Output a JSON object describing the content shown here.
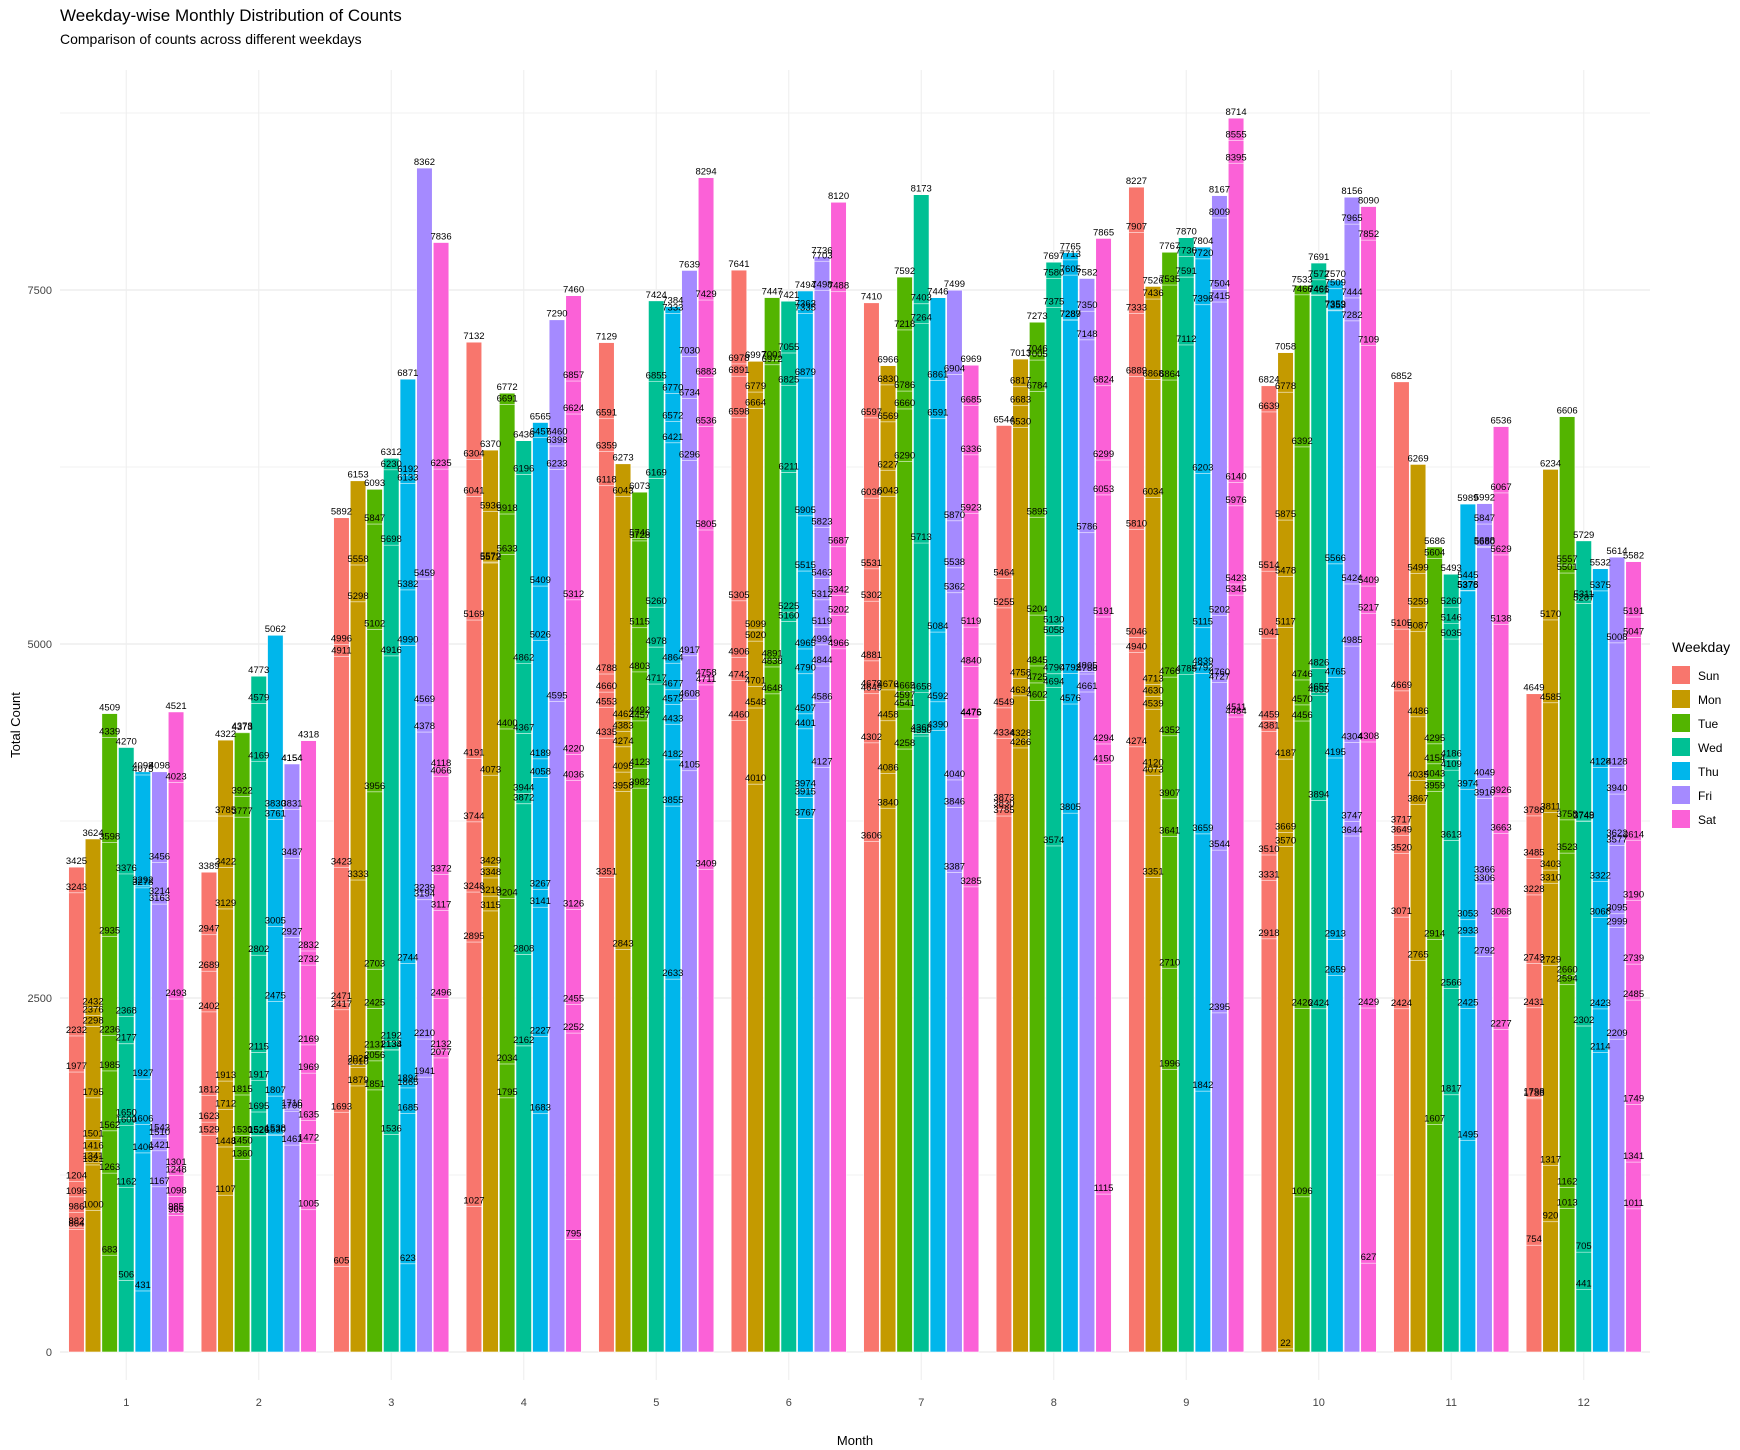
{
  "chart_data": {
    "type": "bar",
    "title": "Weekday-wise Monthly Distribution of Counts",
    "subtitle": "Comparison of counts across different weekdays",
    "xlabel": "Month",
    "ylabel": "Total Count",
    "ylim": [
      0,
      8800
    ],
    "y_ticks": [
      0,
      2500,
      5000,
      7500
    ],
    "categories": [
      "1",
      "2",
      "3",
      "4",
      "5",
      "6",
      "7",
      "8",
      "9",
      "10",
      "11",
      "12"
    ],
    "grid": true,
    "legend": {
      "title": "Weekday",
      "placement": "right"
    },
    "series": [
      {
        "name": "Sun",
        "color": "#F8766D",
        "values": [
          3425,
          3389,
          5892,
          7132,
          7129,
          7641,
          7410,
          6544,
          8227,
          6824,
          6852,
          4649
        ],
        "labels": [
          [
            3425,
            3243,
            2232,
            1977,
            1204,
            1096,
            986,
            882,
            864
          ],
          [
            3389,
            2947,
            2689,
            2402,
            1812,
            1623,
            1529
          ],
          [
            5892,
            4996,
            4911,
            3423,
            2471,
            2417,
            1693,
            605
          ],
          [
            7132,
            6304,
            6041,
            5169,
            4191,
            3744,
            3248,
            2895,
            1027
          ],
          [
            7129,
            6591,
            6359,
            6118,
            4788,
            4660,
            4553,
            4335,
            3351
          ],
          [
            7641,
            6978,
            6891,
            6598,
            5305,
            4906,
            4742,
            4460
          ],
          [
            7410,
            6597,
            6030,
            5531,
            5302,
            4881,
            4679,
            4649,
            4302,
            3606
          ],
          [
            6544,
            5464,
            5255,
            4549,
            4334,
            3873,
            3830,
            3785
          ],
          [
            8227,
            7907,
            7333,
            6889,
            5810,
            5046,
            4940,
            4274
          ],
          [
            6824,
            6639,
            5514,
            5041,
            4459,
            4381,
            3510,
            3331,
            2918
          ],
          [
            6852,
            5105,
            4669,
            3717,
            3649,
            3520,
            3071,
            2424
          ],
          [
            4649,
            3786,
            3485,
            3228,
            2743,
            2431,
            1798,
            1788,
            754
          ]
        ]
      },
      {
        "name": "Mon",
        "color": "#C49A00",
        "values": [
          3624,
          4322,
          6153,
          6370,
          6273,
          6997,
          6966,
          7013,
          7526,
          7058,
          6269,
          6234
        ],
        "labels": [
          [
            3624,
            2432,
            2376,
            2298,
            1795,
            1501,
            1416,
            1341,
            1321,
            1000
          ],
          [
            4322,
            3785,
            3422,
            3129,
            1913,
            1712,
            1448,
            1107
          ],
          [
            6153,
            5558,
            5298,
            3333,
            2029,
            2010,
            1879
          ],
          [
            6370,
            5936,
            5579,
            5572,
            4073,
            3429,
            3348,
            3219,
            3115
          ],
          [
            6273,
            6043,
            4462,
            4383,
            4274,
            4095,
            3958,
            2843
          ],
          [
            6997,
            6779,
            6664,
            5099,
            5020,
            4701,
            4548,
            4010
          ],
          [
            6966,
            6830,
            6569,
            6227,
            6043,
            4676,
            4458,
            4086,
            3840
          ],
          [
            7013,
            6817,
            6683,
            6530,
            4758,
            4634,
            4328,
            4266
          ],
          [
            7526,
            7436,
            6868,
            6034,
            4713,
            4630,
            4539,
            4120,
            4073,
            3351
          ],
          [
            7058,
            6778,
            5875,
            5478,
            5117,
            4187,
            3669,
            3570,
            22
          ],
          [
            6269,
            5499,
            5259,
            5087,
            4486,
            4035,
            3867,
            2765
          ],
          [
            6234,
            5170,
            4585,
            3811,
            3403,
            3310,
            2729,
            1317,
            920
          ]
        ]
      },
      {
        "name": "Tue",
        "color": "#53B400",
        "values": [
          4509,
          4378,
          6093,
          6772,
          6073,
          7447,
          7592,
          7273,
          7767,
          7533,
          5686,
          6606
        ],
        "labels": [
          [
            4509,
            4339,
            3598,
            2935,
            2236,
            1985,
            1562,
            1263,
            683
          ],
          [
            4378,
            4373,
            3922,
            3777,
            1815,
            1530,
            1450,
            1360
          ],
          [
            6093,
            5847,
            5102,
            3956,
            2703,
            2425,
            2131,
            2056,
            1851
          ],
          [
            6772,
            6691,
            5918,
            5633,
            4400,
            3204,
            2034,
            1795
          ],
          [
            6073,
            5746,
            5728,
            5115,
            4803,
            4492,
            4457,
            4123,
            3982
          ],
          [
            7447,
            7001,
            6972,
            4891,
            4838,
            4648
          ],
          [
            7592,
            7218,
            6786,
            6660,
            6290,
            4665,
            4597,
            4541,
            4258
          ],
          [
            7273,
            7046,
            7005,
            6784,
            5895,
            5204,
            4845,
            4725,
            4602
          ],
          [
            7767,
            7535,
            6864,
            4766,
            4352,
            3907,
            3641,
            2710,
            1996
          ],
          [
            7533,
            7466,
            6392,
            4746,
            4570,
            4456,
            2426,
            1096
          ],
          [
            5686,
            5604,
            4295,
            4154,
            4043,
            3959,
            2914,
            1607
          ],
          [
            6606,
            5557,
            5501,
            3758,
            3523,
            2594,
            2660,
            1162,
            1013
          ]
        ]
      },
      {
        "name": "Wed",
        "color": "#00C094",
        "values": [
          4270,
          4773,
          6312,
          6436,
          7424,
          7421,
          8173,
          7697,
          7870,
          7691,
          5493,
          5729
        ],
        "labels": [
          [
            4270,
            3376,
            2368,
            2177,
            1650,
            1600,
            1162,
            506
          ],
          [
            4773,
            4579,
            4169,
            2802,
            2115,
            1917,
            1695,
            1528,
            1526
          ],
          [
            6312,
            6230,
            5698,
            4916,
            2192,
            2133,
            2134,
            1536
          ],
          [
            6436,
            6196,
            4862,
            4367,
            3944,
            3872,
            2808,
            2162
          ],
          [
            7424,
            6855,
            6169,
            5260,
            4978,
            4717
          ],
          [
            7421,
            7055,
            6825,
            6211,
            5225,
            5160
          ],
          [
            8173,
            7403,
            7264,
            5713,
            4658,
            4368,
            4350
          ],
          [
            7697,
            7580,
            7375,
            5130,
            5058,
            4790,
            4694,
            3574
          ],
          [
            7870,
            7736,
            7591,
            7112,
            4785
          ],
          [
            7691,
            7572,
            7461,
            7466,
            4826,
            4635,
            4657,
            3894,
            2424
          ],
          [
            5493,
            5260,
            5146,
            5035,
            4186,
            4109,
            3613,
            2566,
            1817
          ],
          [
            5729,
            5311,
            5287,
            3748,
            3749,
            2302,
            705,
            441
          ]
        ]
      },
      {
        "name": "Thu",
        "color": "#00B6EB",
        "values": [
          4098,
          5062,
          6871,
          6565,
          7384,
          7494,
          7446,
          7765,
          7804,
          7570,
          5989,
          5532
        ],
        "labels": [
          [
            4098,
            4075,
            3292,
            3278,
            1927,
            1606,
            1406,
            431
          ],
          [
            5062,
            3830,
            3761,
            3005,
            2475,
            1807,
            1538,
            1530
          ],
          [
            6871,
            6192,
            6133,
            5382,
            4990,
            2744,
            1894,
            1865,
            1685,
            623
          ],
          [
            6565,
            6457,
            5409,
            5026,
            4189,
            4058,
            3267,
            3141,
            2227,
            1683
          ],
          [
            7384,
            7333,
            6770,
            6572,
            6421,
            4864,
            4677,
            4573,
            4433,
            4182,
            3855,
            2633
          ],
          [
            7494,
            7363,
            7335,
            6879,
            5905,
            5515,
            4965,
            4790,
            4507,
            4401,
            3974,
            3915,
            3767
          ],
          [
            7446,
            6861,
            6591,
            5084,
            4592,
            4390
          ],
          [
            7765,
            7713,
            7605,
            7287,
            7289,
            4792,
            4576,
            3805
          ],
          [
            7804,
            7720,
            7396,
            6203,
            5115,
            4839,
            4792,
            3659,
            1842
          ],
          [
            7570,
            7509,
            7359,
            7353,
            5566,
            4765,
            4195,
            2913,
            2659
          ],
          [
            5989,
            5445,
            5375,
            5378,
            3974,
            3053,
            2933,
            2425,
            1495
          ],
          [
            5532,
            5375,
            4128,
            3322,
            3068,
            2423,
            2114
          ]
        ]
      },
      {
        "name": "Fri",
        "color": "#A58AFF",
        "values": [
          4098,
          4154,
          8362,
          7290,
          7639,
          7736,
          7499,
          7582,
          8167,
          8156,
          5992,
          5614
        ],
        "labels": [
          [
            4098,
            3456,
            3214,
            3163,
            1543,
            1510,
            1421,
            1167
          ],
          [
            4154,
            4154,
            3831,
            3487,
            2927,
            1716,
            1700,
            1461
          ],
          [
            8362,
            5459,
            4569,
            4378,
            3239,
            3194,
            2210,
            1941
          ],
          [
            7290,
            6460,
            6398,
            6233,
            4595
          ],
          [
            7639,
            7030,
            6734,
            6296,
            4917,
            4608,
            4105
          ],
          [
            7736,
            7703,
            7498,
            5823,
            5463,
            5312,
            5119,
            4994,
            4844,
            4586,
            4127
          ],
          [
            7499,
            6904,
            5870,
            5538,
            5362,
            4040,
            3846,
            3387
          ],
          [
            7582,
            7350,
            7148,
            5786,
            4805,
            4788,
            4661
          ],
          [
            8167,
            8009,
            7504,
            7415,
            5202,
            4760,
            4727,
            3544,
            2395
          ],
          [
            8156,
            7965,
            7444,
            7282,
            5424,
            4985,
            4304,
            3747,
            3644
          ],
          [
            5992,
            5847,
            5688,
            5680,
            4049,
            3910,
            3366,
            3306,
            2792
          ],
          [
            5614,
            5008,
            4128,
            3940,
            3577,
            3622,
            3095,
            2999,
            2209
          ]
        ]
      },
      {
        "name": "Sat",
        "color": "#FB61D7",
        "values": [
          4521,
          4318,
          7836,
          7460,
          8294,
          8120,
          6969,
          7865,
          8714,
          8090,
          6536,
          5582
        ],
        "labels": [
          [
            4521,
            4023,
            2493,
            1301,
            1248,
            1098,
            985,
            965
          ],
          [
            4318,
            2832,
            2732,
            2169,
            1969,
            1635,
            1472,
            1005
          ],
          [
            7836,
            6235,
            4118,
            4066,
            3372,
            3117,
            2496,
            2132,
            2077
          ],
          [
            7460,
            6857,
            6624,
            5312,
            4220,
            4036,
            3126,
            2455,
            2252,
            795
          ],
          [
            8294,
            7429,
            6883,
            6536,
            5805,
            4758,
            4711,
            3409
          ],
          [
            8120,
            7488,
            5687,
            5342,
            5202,
            4966
          ],
          [
            6969,
            6685,
            6336,
            5923,
            5119,
            4840,
            4476,
            4475,
            3285
          ],
          [
            7865,
            6824,
            6299,
            6053,
            5191,
            4294,
            4150,
            1115
          ],
          [
            8714,
            8555,
            8395,
            6140,
            5976,
            5423,
            5345,
            4511,
            4484
          ],
          [
            8090,
            7852,
            7109,
            5409,
            5217,
            4308,
            2429,
            627
          ],
          [
            6536,
            6067,
            5629,
            5138,
            3926,
            3663,
            3068,
            2277
          ],
          [
            5582,
            5191,
            5047,
            3614,
            3190,
            2739,
            2485,
            1749,
            1341,
            1011
          ]
        ]
      }
    ]
  }
}
